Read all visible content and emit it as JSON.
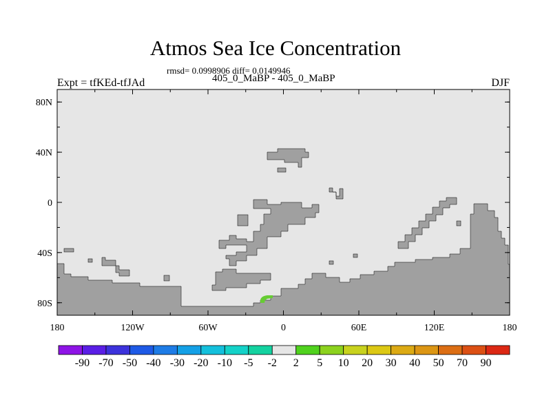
{
  "title": "Atmos Sea Ice Concentration",
  "subtitle_stats": "rmsd= 0.0998906 diff= 0.0149946",
  "subtitle_case": "405_0_MaBP - 405_0_MaBP",
  "left_label": "Expt = tfKEd-tfJAd",
  "right_label": "DJF",
  "axes": {
    "y_ticks": [
      "80N",
      "40N",
      "0",
      "40S",
      "80S"
    ],
    "x_ticks": [
      "180",
      "120W",
      "60W",
      "0",
      "60E",
      "120E",
      "180"
    ]
  },
  "colors": {
    "land": "#a0a0a0",
    "ocean_background": "#e6e6e6",
    "positive_anomaly": "#66cc33"
  },
  "colorbar": {
    "labels": [
      "-90",
      "-70",
      "-50",
      "-40",
      "-30",
      "-20",
      "-10",
      "-5",
      "-2",
      "2",
      "5",
      "10",
      "20",
      "30",
      "40",
      "50",
      "70",
      "90"
    ],
    "colors": [
      "#8e14e6",
      "#5a1ee6",
      "#3c32dc",
      "#1e5ae6",
      "#1e7ce6",
      "#14a0e6",
      "#14c0dc",
      "#14d2c8",
      "#14d2a0",
      "#e6e6e6",
      "#50d21e",
      "#8cd21e",
      "#c8d21e",
      "#dcc814",
      "#dcaa14",
      "#dc9614",
      "#dc6e14",
      "#dc5014",
      "#dc2814"
    ]
  }
}
